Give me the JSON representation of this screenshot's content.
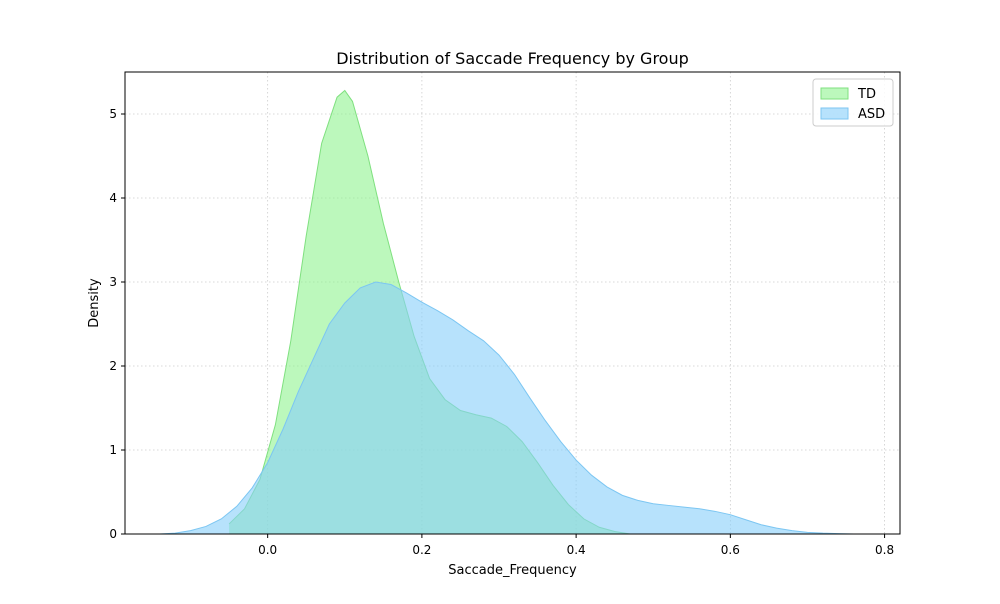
{
  "chart_data": {
    "type": "area",
    "title": "Distribution of Saccade Frequency by Group",
    "xlabel": "Saccade_Frequency",
    "ylabel": "Density",
    "xlim": [
      -0.185,
      0.82
    ],
    "ylim": [
      0,
      5.5
    ],
    "xticks": [
      0.0,
      0.2,
      0.4,
      0.6,
      0.8
    ],
    "xtick_labels": [
      "0.0",
      "0.2",
      "0.4",
      "0.6",
      "0.8"
    ],
    "yticks": [
      0,
      1,
      2,
      3,
      4,
      5
    ],
    "ytick_labels": [
      "0",
      "1",
      "2",
      "3",
      "4",
      "5"
    ],
    "grid": true,
    "legend_position": "upper right",
    "series": [
      {
        "name": "TD",
        "fill": "#90f490",
        "stroke": "#7fe07f",
        "opacity": 0.6,
        "x": [
          -0.05,
          -0.03,
          -0.01,
          0.01,
          0.03,
          0.05,
          0.07,
          0.09,
          0.1,
          0.11,
          0.13,
          0.15,
          0.17,
          0.19,
          0.21,
          0.23,
          0.25,
          0.27,
          0.29,
          0.31,
          0.33,
          0.35,
          0.37,
          0.39,
          0.41,
          0.43,
          0.45,
          0.47
        ],
        "y": [
          0.12,
          0.3,
          0.65,
          1.3,
          2.3,
          3.55,
          4.65,
          5.2,
          5.28,
          5.15,
          4.5,
          3.7,
          3.0,
          2.35,
          1.85,
          1.6,
          1.47,
          1.42,
          1.38,
          1.28,
          1.1,
          0.85,
          0.58,
          0.35,
          0.18,
          0.08,
          0.03,
          0.0
        ]
      },
      {
        "name": "ASD",
        "fill": "#87cefa",
        "stroke": "#7cc6f2",
        "opacity": 0.6,
        "x": [
          -0.14,
          -0.12,
          -0.1,
          -0.08,
          -0.06,
          -0.04,
          -0.02,
          0.0,
          0.02,
          0.04,
          0.06,
          0.08,
          0.1,
          0.12,
          0.14,
          0.16,
          0.18,
          0.2,
          0.22,
          0.24,
          0.26,
          0.28,
          0.3,
          0.32,
          0.34,
          0.36,
          0.38,
          0.4,
          0.42,
          0.44,
          0.46,
          0.48,
          0.5,
          0.52,
          0.54,
          0.56,
          0.58,
          0.6,
          0.62,
          0.64,
          0.66,
          0.68,
          0.7,
          0.72,
          0.74,
          0.76,
          0.775
        ],
        "y": [
          0.0,
          0.01,
          0.04,
          0.09,
          0.18,
          0.33,
          0.55,
          0.85,
          1.25,
          1.7,
          2.1,
          2.5,
          2.75,
          2.93,
          3.0,
          2.97,
          2.87,
          2.76,
          2.66,
          2.55,
          2.42,
          2.3,
          2.13,
          1.9,
          1.62,
          1.35,
          1.1,
          0.88,
          0.7,
          0.56,
          0.46,
          0.4,
          0.36,
          0.34,
          0.32,
          0.3,
          0.27,
          0.23,
          0.17,
          0.11,
          0.07,
          0.04,
          0.02,
          0.01,
          0.005,
          0.0,
          0.0
        ]
      }
    ]
  }
}
